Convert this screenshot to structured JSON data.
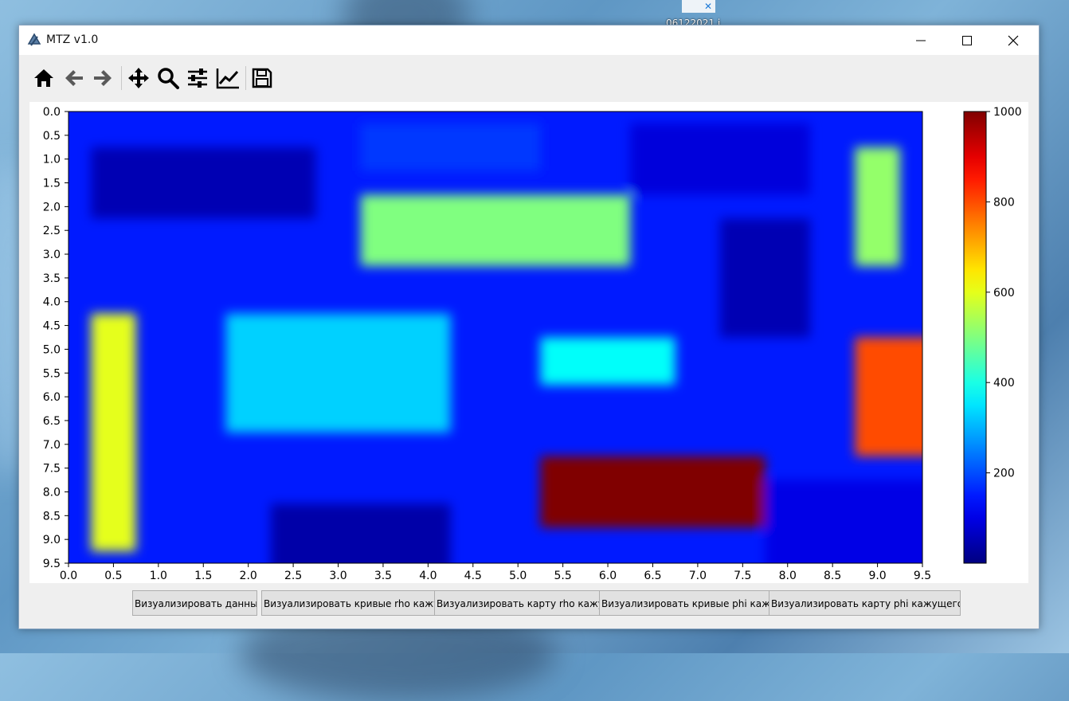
{
  "desktop": {
    "icon_label": "06122021.j",
    "colors": {
      "sky": "#6fa6d0",
      "dark": "#3f5f80"
    }
  },
  "window": {
    "title": "MTZ v1.0",
    "controls": [
      "minimize-icon",
      "maximize-icon",
      "close-icon"
    ]
  },
  "toolbar": {
    "icons": [
      "home-icon",
      "back-arrow-icon",
      "forward-arrow-icon",
      "pan-icon",
      "zoom-icon",
      "subplots-icon",
      "edit-axis-icon",
      "save-icon"
    ]
  },
  "buttons": [
    {
      "label": "Визуализировать данные"
    },
    {
      "label": "Визуализировать кривые rho кажущ"
    },
    {
      "label": "Визуализировать карту rho кажущ"
    },
    {
      "label": "Визуализировать кривые phi кажущ"
    },
    {
      "label": "Визуализировать карту phi кажущегося"
    }
  ],
  "chart_data": {
    "type": "heatmap",
    "title": "",
    "xlabel": "",
    "ylabel": "",
    "xlim": [
      0.0,
      9.5
    ],
    "ylim": [
      9.5,
      0.0
    ],
    "x_ticks": [
      "0.0",
      "0.5",
      "1.0",
      "1.5",
      "2.0",
      "2.5",
      "3.0",
      "3.5",
      "4.0",
      "4.5",
      "5.0",
      "5.5",
      "6.0",
      "6.5",
      "7.0",
      "7.5",
      "8.0",
      "8.5",
      "9.0",
      "9.5"
    ],
    "y_ticks": [
      "0.0",
      "0.5",
      "1.0",
      "1.5",
      "2.0",
      "2.5",
      "3.0",
      "3.5",
      "4.0",
      "4.5",
      "5.0",
      "5.5",
      "6.0",
      "6.5",
      "7.0",
      "7.5",
      "8.0",
      "8.5",
      "9.0",
      "9.5"
    ],
    "colormap": "jet",
    "colorbar": {
      "range": [
        0,
        1000
      ],
      "ticks": [
        "200",
        "400",
        "600",
        "800",
        "1000"
      ]
    },
    "background_value": 150,
    "regions": [
      {
        "x": [
          3.5,
          5.0
        ],
        "y": [
          0.5,
          1.0
        ],
        "value": 180
      },
      {
        "x": [
          0.5,
          2.5
        ],
        "y": [
          1.0,
          2.0
        ],
        "value": 50
      },
      {
        "x": [
          6.5,
          8.0
        ],
        "y": [
          0.5,
          1.5
        ],
        "value": 90
      },
      {
        "x": [
          3.5,
          6.0
        ],
        "y": [
          2.0,
          3.0
        ],
        "value": 500
      },
      {
        "x": [
          9.0,
          9.0
        ],
        "y": [
          1.0,
          3.0
        ],
        "value": 520
      },
      {
        "x": [
          7.5,
          8.0
        ],
        "y": [
          2.5,
          4.5
        ],
        "value": 50
      },
      {
        "x": [
          0.5,
          0.5
        ],
        "y": [
          4.5,
          9.0
        ],
        "value": 600
      },
      {
        "x": [
          2.0,
          4.0
        ],
        "y": [
          4.5,
          6.5
        ],
        "value": 330
      },
      {
        "x": [
          5.5,
          6.5
        ],
        "y": [
          5.0,
          5.5
        ],
        "value": 380
      },
      {
        "x": [
          9.0,
          9.5
        ],
        "y": [
          5.0,
          7.0
        ],
        "value": 800
      },
      {
        "x": [
          5.5,
          7.5
        ],
        "y": [
          7.5,
          8.5
        ],
        "value": 1000
      },
      {
        "x": [
          2.5,
          4.0
        ],
        "y": [
          8.5,
          9.5
        ],
        "value": 40
      },
      {
        "x": [
          8.0,
          9.5
        ],
        "y": [
          8.0,
          9.5
        ],
        "value": 100
      }
    ]
  }
}
